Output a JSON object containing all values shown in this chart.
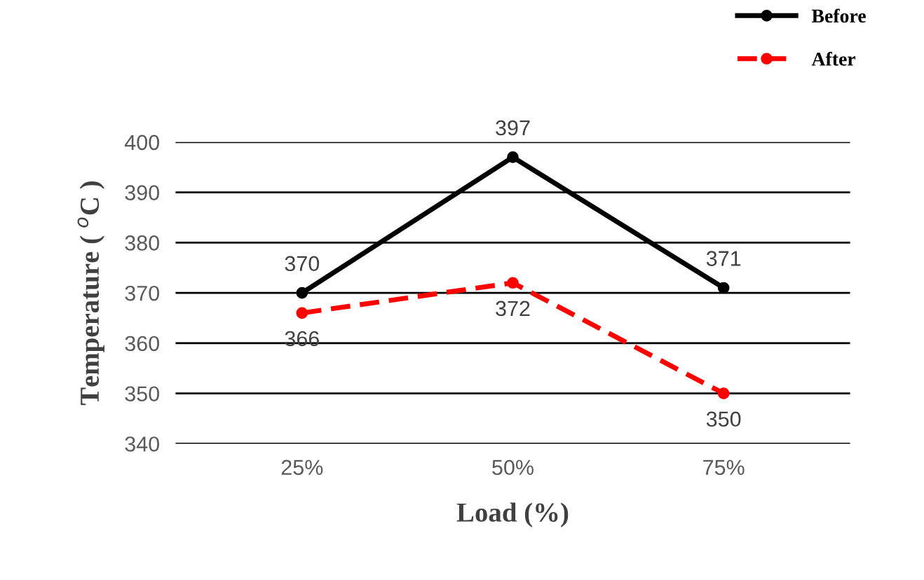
{
  "chart_data": {
    "type": "line",
    "xlabel": "Load (%)",
    "ylabel": "Temperature ( $^{o}$C )",
    "categories": [
      "25%",
      "50%",
      "75%"
    ],
    "series": [
      {
        "name": "Before",
        "color": "#000000",
        "values": [
          370,
          397,
          371
        ],
        "line_style": "solid"
      },
      {
        "name": "After",
        "color": "#ff0000",
        "values": [
          366,
          372,
          350
        ],
        "line_style": "dashed"
      }
    ],
    "ylim": [
      340,
      400
    ],
    "yticks": [
      340,
      350,
      360,
      370,
      380,
      390,
      400
    ],
    "grid": "y",
    "legend": "top right",
    "marker": "circle",
    "data_labels": true
  }
}
